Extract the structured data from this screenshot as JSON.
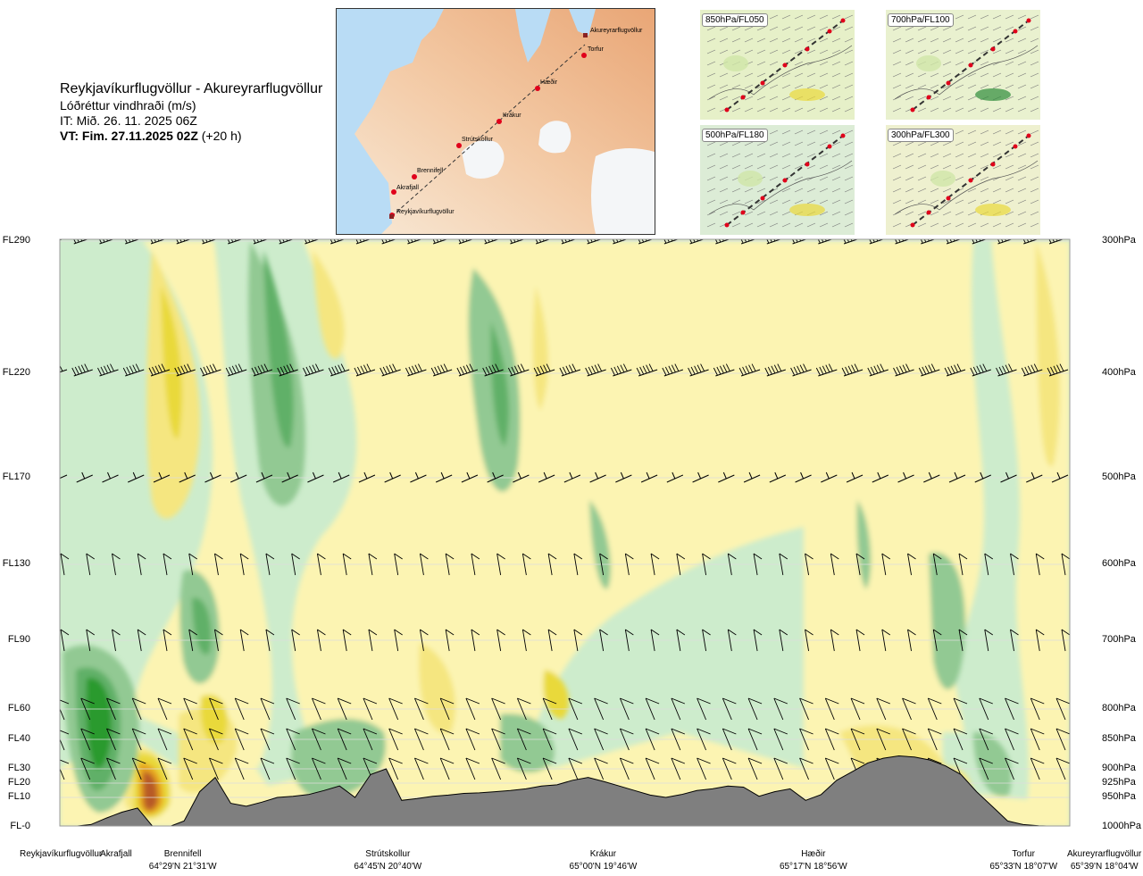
{
  "title": {
    "route": "Reykjavíkurflugvöllur - Akureyrarflugvöllur",
    "parameter": "Lóðréttur vindhraði (m/s)",
    "issue_time": "IT: Mið. 26. 11. 2025 06Z",
    "valid_time": "VT: Fim. 27.11.2025 02Z",
    "lead": "(+20 h)"
  },
  "map": {
    "waypoints": [
      "Reykjavíkurflugvöllur",
      "Akrafjall",
      "Brennifell",
      "Strútskollur",
      "Krákur",
      "Hæðir",
      "Torfur",
      "Akureyrarflugvöllur"
    ]
  },
  "thumbnails": [
    {
      "label": "850hPa/FL050"
    },
    {
      "label": "700hPa/FL100"
    },
    {
      "label": "500hPa/FL180"
    },
    {
      "label": "300hPa/FL300"
    }
  ],
  "chart_data": {
    "type": "heatmap",
    "title": "Lóðréttur vindhraði (m/s)",
    "x_stations": [
      {
        "name": "Reykjavíkurflugvöllur",
        "coords": "",
        "km": 0
      },
      {
        "name": "Akrafjall",
        "coords": "",
        "km": 11
      },
      {
        "name": "Brennifell",
        "coords": "64°29'N 21°31'W",
        "km": 24
      },
      {
        "name": "Strútskollur",
        "coords": "64°45'N 20°40'W",
        "km": 64
      },
      {
        "name": "Krákur",
        "coords": "65°00'N 19°46'W",
        "km": 106
      },
      {
        "name": "Hæðir",
        "coords": "65°17'N 18°56'W",
        "km": 147
      },
      {
        "name": "Torfur",
        "coords": "65°33'N 18°07'W",
        "km": 188
      },
      {
        "name": "Akureyrarflugvöllur",
        "coords": "65°39'N 18°04'W",
        "km": 197
      }
    ],
    "y_left_labels": [
      {
        "label": "FL290",
        "hpa": 300
      },
      {
        "label": "FL220",
        "hpa": 400
      },
      {
        "label": "FL170",
        "hpa": 500
      },
      {
        "label": "FL130",
        "hpa": 600
      },
      {
        "label": "FL90",
        "hpa": 700
      },
      {
        "label": "FL60",
        "hpa": 800
      },
      {
        "label": "FL40",
        "hpa": 850
      },
      {
        "label": "FL30",
        "hpa": 900
      },
      {
        "label": "FL20",
        "hpa": 925
      },
      {
        "label": "FL10",
        "hpa": 950
      },
      {
        "label": "FL-0",
        "hpa": 1000
      }
    ],
    "y_right_labels": [
      "300hPa",
      "400hPa",
      "500hPa",
      "600hPa",
      "700hPa",
      "800hPa",
      "850hPa",
      "900hPa",
      "925hPa",
      "950hPa",
      "1000hPa"
    ],
    "ylim_hpa": [
      1000,
      300
    ],
    "terrain_hpa": [
      1000,
      999,
      996,
      985,
      975,
      968,
      1000,
      1000,
      990,
      940,
      915,
      960,
      965,
      958,
      950,
      948,
      945,
      938,
      930,
      950,
      910,
      900,
      955,
      952,
      948,
      946,
      943,
      942,
      940,
      938,
      935,
      930,
      928,
      920,
      915,
      922,
      930,
      938,
      946,
      950,
      945,
      938,
      935,
      930,
      932,
      948,
      940,
      935,
      955,
      945,
      920,
      905,
      890,
      882,
      878,
      880,
      885,
      895,
      910,
      940,
      965,
      990,
      996,
      998,
      999,
      1000
    ],
    "colour_levels": {
      "-1.0": "#2c9a2f",
      "-0.5": "#61b067",
      "-0.3": "#92c993",
      "-0.1": "#cdeccc",
      "0.1": "#fcf4b2",
      "0.3": "#f5e680",
      "0.5": "#e9d93b",
      "1.0": "#e7a31f",
      "2.0": "#b85a26"
    }
  }
}
